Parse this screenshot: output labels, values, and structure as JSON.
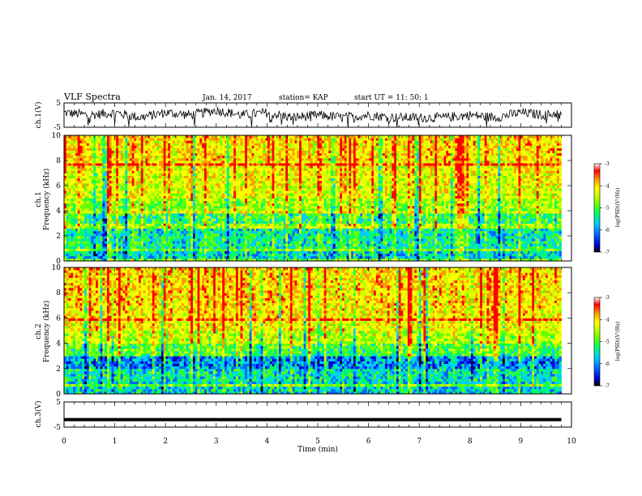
{
  "header": {
    "title": "VLF Spectra",
    "date": "Jan. 14, 2017",
    "station": "station= KAP",
    "start": "start  UT =   11: 50: 1"
  },
  "colors": {
    "colormap": [
      "#000000",
      "#0000cc",
      "#0066ff",
      "#00ccff",
      "#00ff66",
      "#66ff00",
      "#ccff00",
      "#ffff00",
      "#ff9900",
      "#ff0000",
      "#ffffff"
    ],
    "trace": "#000000"
  },
  "chart_data": [
    {
      "id": "ch1-waveform",
      "type": "line",
      "ylabel": "ch.1(V)",
      "ylim": [
        -5,
        5
      ],
      "yticks": [
        "5",
        "-5"
      ],
      "xlim": [
        0,
        10
      ],
      "series": [
        {
          "x": [
            0,
            0.5,
            1,
            1.5,
            2,
            2.5,
            3,
            3.5,
            4,
            4.5,
            5,
            5.5,
            6,
            6.5,
            7,
            7.5,
            8,
            8.5,
            9,
            9.5,
            9.8
          ],
          "values": [
            1,
            0,
            1,
            -1,
            1,
            0,
            2,
            0,
            1,
            -1,
            0,
            -1,
            0,
            -1,
            -1,
            -1,
            0,
            -1,
            1,
            0,
            1
          ]
        }
      ]
    },
    {
      "id": "ch1-spectrogram",
      "type": "heatmap",
      "xlabel": "",
      "ylabel": "Frequency (kHz)",
      "panel_label": "ch.1",
      "xlim": [
        0,
        9.8
      ],
      "ylim": [
        0,
        10
      ],
      "yticks": [
        "0",
        "2",
        "4",
        "6",
        "8",
        "10"
      ],
      "colorbar": {
        "label": "log(PSD)(V²/Hz)",
        "range": [
          -7,
          -3
        ],
        "ticks": [
          "-3",
          "-4",
          "-5",
          "-6",
          "-7"
        ]
      },
      "freq_bins_khz": [
        0.5,
        1.5,
        2.5,
        3.5,
        4.5,
        5.5,
        6.5,
        7.5,
        8.5,
        9.5
      ],
      "mean_log_psd": [
        -5.6,
        -5.3,
        -5.4,
        -5.1,
        -4.6,
        -4.3,
        -4.2,
        -4.1,
        -4.0,
        -4.0
      ]
    },
    {
      "id": "ch2-spectrogram",
      "type": "heatmap",
      "xlabel": "",
      "ylabel": "Frequency (kHz)",
      "panel_label": "ch.2",
      "xlim": [
        0,
        9.8
      ],
      "ylim": [
        0,
        10
      ],
      "yticks": [
        "0",
        "2",
        "4",
        "6",
        "8",
        "10"
      ],
      "colorbar": {
        "label": "log(PSD)(V²/Hz)",
        "range": [
          -7,
          -3
        ],
        "ticks": [
          "-3",
          "-4",
          "-5",
          "-6",
          "-7"
        ]
      },
      "freq_bins_khz": [
        0.5,
        1.5,
        2.5,
        3.5,
        4.5,
        5.5,
        6.5,
        7.5,
        8.5,
        9.5
      ],
      "mean_log_psd": [
        -5.5,
        -5.4,
        -5.8,
        -4.9,
        -4.4,
        -4.1,
        -4.0,
        -3.9,
        -3.9,
        -3.9
      ]
    },
    {
      "id": "ch3-waveform",
      "type": "line",
      "ylabel": "ch.3(V)",
      "xlabel": "Time (min)",
      "ylim": [
        -5,
        5
      ],
      "yticks": [
        "5",
        "-5"
      ],
      "xlim": [
        0,
        10
      ],
      "xticks": [
        "0",
        "1",
        "2",
        "3",
        "4",
        "5",
        "6",
        "7",
        "8",
        "9",
        "10"
      ],
      "series": [
        {
          "x": [
            0,
            9.8
          ],
          "values": [
            -2,
            -2
          ]
        }
      ]
    }
  ]
}
